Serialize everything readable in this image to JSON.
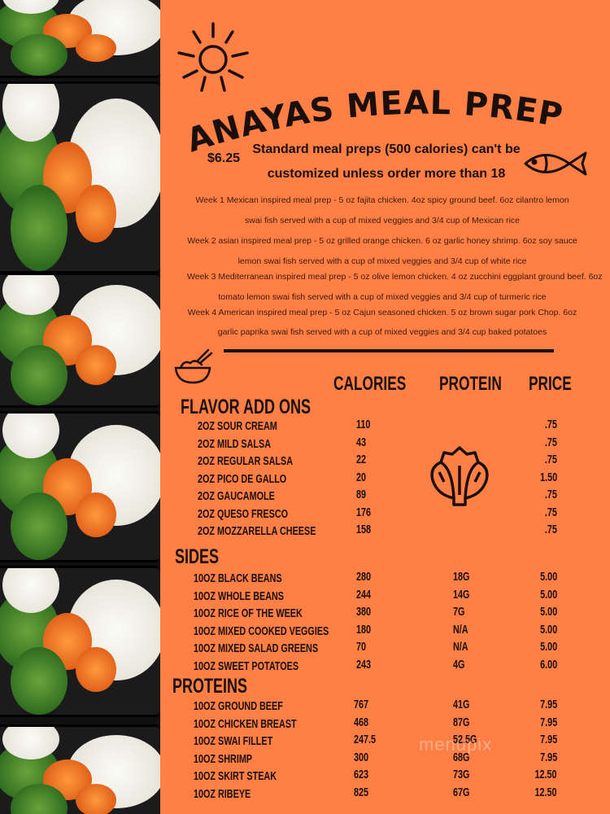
{
  "title": "ANAYAS MEAL PREP",
  "intro": {
    "price": "$6.25",
    "line1": "Standard meal preps (500 calories) can't be",
    "line2": "customized unless order more than 18"
  },
  "weeks": [
    "Week 1 Mexican inspired meal prep - 5 oz fajita chicken. 4oz spicy ground beef. 6oz cilantro lemon",
    "swai fish served with a cup of mixed veggies and 3/4 cup of Mexican rice",
    "Week 2 asian inspired meal prep - 5 oz grilled orange chicken. 6 oz garlic honey shrimp. 6oz soy sauce",
    "lemon swai fish served with a cup of mixed veggies and 3/4 cup of white rice",
    "Week 3 Mediterranean inspired meal prep - 5 oz olive lemon chicken. 4 oz zucchini eggplant ground beef. 6oz",
    "tomato lemon swai fish served with a cup of mixed veggies and 3/4 cup of turmeric rice",
    "Week 4 American inspired meal prep - 5 oz Cajun seasoned chicken. 5 oz brown sugar pork Chop. 6oz",
    "garlic paprika swai fish served with a cup of mixed veggies and 3/4 cup baked potatoes"
  ],
  "columns": {
    "calories": "CALORIES",
    "protein": "PROTEIN",
    "price": "PRICE"
  },
  "sections": [
    {
      "title": "FLAVOR ADD ONS",
      "items": [
        {
          "name": "2OZ SOUR CREAM",
          "calories": "110",
          "protein": "",
          "price": ".75"
        },
        {
          "name": "2OZ MILD SALSA",
          "calories": "43",
          "protein": "",
          "price": ".75"
        },
        {
          "name": "2OZ REGULAR SALSA",
          "calories": "22",
          "protein": "",
          "price": ".75"
        },
        {
          "name": "2OZ PICO DE GALLO",
          "calories": "20",
          "protein": "",
          "price": "1.50"
        },
        {
          "name": "2OZ GAUCAMOLE",
          "calories": "89",
          "protein": "",
          "price": ".75"
        },
        {
          "name": "2OZ QUESO FRESCO",
          "calories": "176",
          "protein": "",
          "price": ".75"
        },
        {
          "name": "2OZ MOZZARELLA CHEESE",
          "calories": "158",
          "protein": "",
          "price": ".75"
        }
      ]
    },
    {
      "title": "SIDES",
      "items": [
        {
          "name": "10OZ BLACK BEANS",
          "calories": "280",
          "protein": "18G",
          "price": "5.00"
        },
        {
          "name": "10OZ WHOLE BEANS",
          "calories": "244",
          "protein": "14G",
          "price": "5.00"
        },
        {
          "name": "10OZ RICE OF THE WEEK",
          "calories": "380",
          "protein": "7G",
          "price": "5.00"
        },
        {
          "name": "10OZ MIXED COOKED VEGGIES",
          "calories": "180",
          "protein": "N/A",
          "price": "5.00"
        },
        {
          "name": "10OZ MIXED SALAD GREENS",
          "calories": "70",
          "protein": "N/A",
          "price": "5.00"
        },
        {
          "name": "10OZ SWEET POTATOES",
          "calories": "243",
          "protein": "4G",
          "price": "6.00"
        }
      ]
    },
    {
      "title": "PROTEINS",
      "items": [
        {
          "name": "10OZ GROUND BEEF",
          "calories": "767",
          "protein": "41G",
          "price": "7.95"
        },
        {
          "name": "10OZ CHICKEN BREAST",
          "calories": "468",
          "protein": "87G",
          "price": "7.95"
        },
        {
          "name": "10OZ SWAI FILLET",
          "calories": "247.5",
          "protein": "52.5G",
          "price": "7.95"
        },
        {
          "name": "10OZ SHRIMP",
          "calories": "300",
          "protein": "68G",
          "price": "7.95"
        },
        {
          "name": "10OZ SKIRT STEAK",
          "calories": "623",
          "protein": "73G",
          "price": "12.50"
        },
        {
          "name": "10OZ RIBEYE",
          "calories": "825",
          "protein": "67G",
          "price": "12.50"
        }
      ]
    }
  ],
  "watermark": "menupix",
  "colors": {
    "background": "#ff7f45",
    "text": "#1a0f0a"
  },
  "icons": [
    "sun-icon",
    "fish-icon",
    "bowl-icon",
    "artichoke-icon"
  ]
}
